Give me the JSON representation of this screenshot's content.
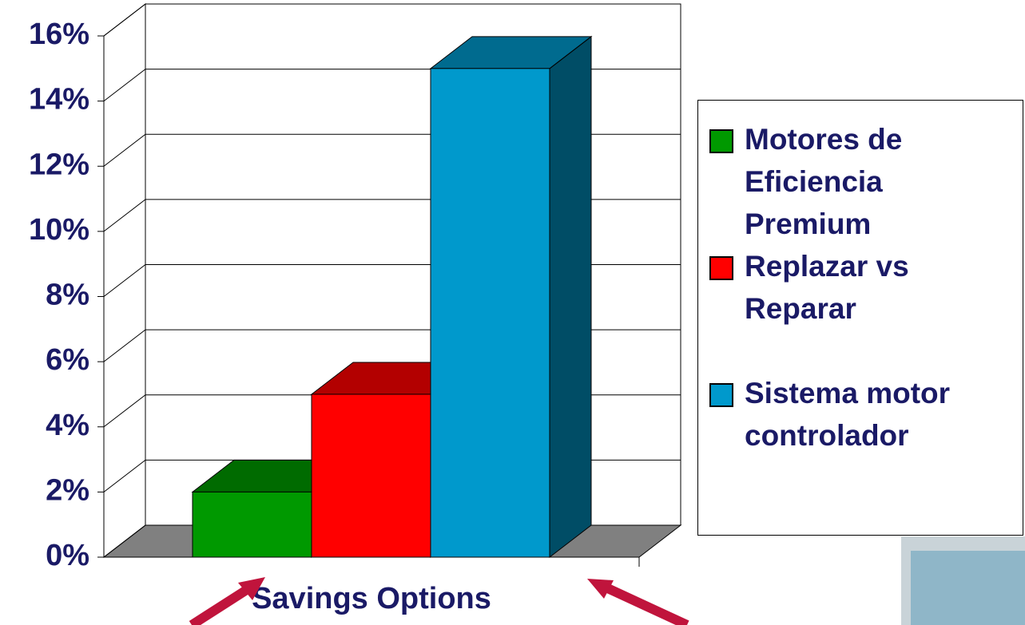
{
  "chart_data": {
    "type": "bar",
    "x_label": "Savings Options",
    "series": [
      {
        "name": "Motores de Eficiencia Premium",
        "color": "#009900",
        "values": [
          2
        ]
      },
      {
        "name": "Replazar vs Reparar",
        "color": "#ff0000",
        "values": [
          5
        ]
      },
      {
        "name": "Sistema motor controlador",
        "color": "#0099cc",
        "values": [
          15
        ]
      }
    ],
    "ylim": [
      0,
      16
    ],
    "yticks": [
      {
        "value": 0,
        "label": "0%"
      },
      {
        "value": 2,
        "label": "2%"
      },
      {
        "value": 4,
        "label": "4%"
      },
      {
        "value": 6,
        "label": "6%"
      },
      {
        "value": 8,
        "label": "8%"
      },
      {
        "value": 10,
        "label": "10%"
      },
      {
        "value": 12,
        "label": "12%"
      },
      {
        "value": 14,
        "label": "14%"
      },
      {
        "value": 16,
        "label": "16%"
      }
    ],
    "grid": true
  }
}
